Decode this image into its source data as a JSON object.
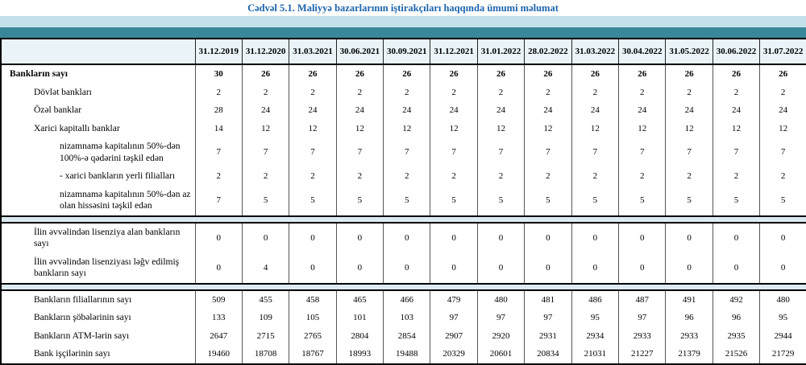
{
  "title": "Cədvəl 5.1. Maliyyə bazarlarının iştirakçıları haqqında ümumi məlumat",
  "colors": {
    "title_color": "#1d64ad",
    "band_light": "#c3e1ea",
    "band_teal": "#3a8799",
    "header_bg": "#eaf4f8",
    "separator_bg": "#dcebf1"
  },
  "table": {
    "date_columns": [
      "31.12.2019",
      "31.12.2020",
      "31.03.2021",
      "30.06.2021",
      "30.09.2021",
      "31.12.2021",
      "31.01.2022",
      "28.02.2022",
      "31.03.2022",
      "30.04.2022",
      "31.05.2022",
      "30.06.2022",
      "31.07.2022"
    ],
    "sections": [
      {
        "name": "banks-count",
        "rows": [
          {
            "label": "Bankların sayı",
            "indent": 0,
            "bold": true,
            "values": [
              "30",
              "26",
              "26",
              "26",
              "26",
              "26",
              "26",
              "26",
              "26",
              "26",
              "26",
              "26",
              "26"
            ]
          },
          {
            "label": "Dövlət bankları",
            "indent": 1,
            "values": [
              "2",
              "2",
              "2",
              "2",
              "2",
              "2",
              "2",
              "2",
              "2",
              "2",
              "2",
              "2",
              "2"
            ]
          },
          {
            "label": "Özəl banklar",
            "indent": 1,
            "values": [
              "28",
              "24",
              "24",
              "24",
              "24",
              "24",
              "24",
              "24",
              "24",
              "24",
              "24",
              "24",
              "24"
            ]
          },
          {
            "label": "Xarici kapitallı banklar",
            "indent": 1,
            "values": [
              "14",
              "12",
              "12",
              "12",
              "12",
              "12",
              "12",
              "12",
              "12",
              "12",
              "12",
              "12",
              "12"
            ]
          },
          {
            "label": "nizamnamə kapitalının 50%-dən 100%-ə qədərini təşkil edən",
            "indent": 2,
            "values": [
              "7",
              "7",
              "7",
              "7",
              "7",
              "7",
              "7",
              "7",
              "7",
              "7",
              "7",
              "7",
              "7"
            ]
          },
          {
            "label": "-  xarici bankların yerli filialları",
            "indent": 2,
            "values": [
              "2",
              "2",
              "2",
              "2",
              "2",
              "2",
              "2",
              "2",
              "2",
              "2",
              "2",
              "2",
              "2"
            ]
          },
          {
            "label": "nizamnamə kapitalının 50%-dən az olan hissəsini  təşkil edən",
            "indent": 2,
            "values": [
              "7",
              "5",
              "5",
              "5",
              "5",
              "5",
              "5",
              "5",
              "5",
              "5",
              "5",
              "5",
              "5"
            ]
          }
        ]
      },
      {
        "name": "licenses",
        "rows": [
          {
            "label": "İlin əvvəlindən lisenziya alan bankların sayı",
            "indent": 1,
            "values": [
              "0",
              "0",
              "0",
              "0",
              "0",
              "0",
              "0",
              "0",
              "0",
              "0",
              "0",
              "0",
              "0"
            ]
          },
          {
            "label": "İlin əvvəlindən lisenziyası ləğv edilmiş bankların sayı",
            "indent": 1,
            "values": [
              "0",
              "4",
              "0",
              "0",
              "0",
              "0",
              "0",
              "0",
              "0",
              "0",
              "0",
              "0",
              "0"
            ]
          }
        ]
      },
      {
        "name": "infrastructure",
        "rows": [
          {
            "label": "Bankların filiallarının sayı",
            "indent": 1,
            "values": [
              "509",
              "455",
              "458",
              "465",
              "466",
              "479",
              "480",
              "481",
              "486",
              "487",
              "491",
              "492",
              "480"
            ]
          },
          {
            "label": "Bankların şöbələrinin sayı",
            "indent": 1,
            "values": [
              "133",
              "109",
              "105",
              "101",
              "103",
              "97",
              "97",
              "97",
              "95",
              "97",
              "96",
              "96",
              "95"
            ]
          },
          {
            "label": "Bankların ATM-lərin sayı",
            "indent": 1,
            "values": [
              "2647",
              "2715",
              "2765",
              "2804",
              "2854",
              "2907",
              "2920",
              "2931",
              "2934",
              "2933",
              "2933",
              "2935",
              "2944"
            ]
          },
          {
            "label": "Bank işçilərinin sayı",
            "indent": 1,
            "values": [
              "19460",
              "18708",
              "18767",
              "18993",
              "19488",
              "20329",
              "20601",
              "20834",
              "21031",
              "21227",
              "21379",
              "21526",
              "21729"
            ]
          }
        ]
      }
    ]
  }
}
